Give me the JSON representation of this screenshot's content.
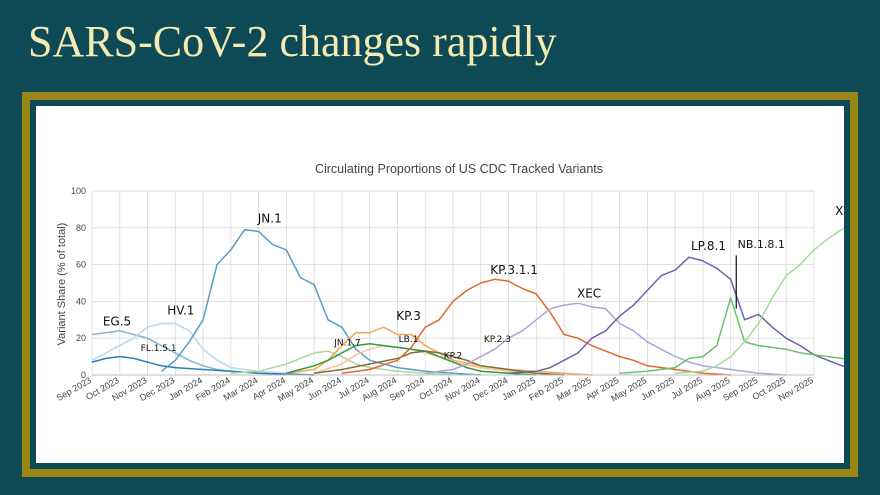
{
  "slide": {
    "title": "SARS-CoV-2 changes rapidly"
  },
  "colors": {
    "background": "#0d4a56",
    "frame": "#9a8614",
    "title": "#f4ebb4"
  },
  "chart_data": {
    "type": "line",
    "title": "Circulating Proportions of US CDC Tracked Variants",
    "ylabel": "Variant Share (% of total)",
    "xlabel": "",
    "ylim": [
      0,
      100
    ],
    "yticks": [
      0,
      20,
      40,
      60,
      80,
      100
    ],
    "xticks": [
      "Sep 2023",
      "Oct 2023",
      "Nov 2023",
      "Dec 2023",
      "Jan 2024",
      "Feb 2024",
      "Mar 2024",
      "Apr 2024",
      "May 2024",
      "Jun 2024",
      "Jul 2024",
      "Aug 2024",
      "Sep 2024",
      "Oct 2024",
      "Nov 2024",
      "Dec 2024",
      "Jan 2025",
      "Feb 2025",
      "Mar 2025",
      "Apr 2025",
      "May 2025",
      "Jun 2025",
      "Jul 2025",
      "Aug 2025",
      "Sep 2025",
      "Oct 2025",
      "Nov 2025"
    ],
    "grid": true,
    "series": [
      {
        "name": "EG.5",
        "color": "#7fb6d6",
        "points": [
          [
            0,
            22
          ],
          [
            0.5,
            23
          ],
          [
            1,
            24
          ],
          [
            1.5,
            22
          ],
          [
            2,
            20
          ],
          [
            2.5,
            16
          ],
          [
            3,
            12
          ],
          [
            3.5,
            8
          ],
          [
            4,
            5
          ],
          [
            4.5,
            3
          ],
          [
            5,
            2
          ],
          [
            6,
            1
          ],
          [
            7,
            0.5
          ],
          [
            8,
            0
          ]
        ]
      },
      {
        "name": "HV.1",
        "color": "#b9d7ea",
        "points": [
          [
            0,
            8
          ],
          [
            0.5,
            12
          ],
          [
            1,
            16
          ],
          [
            1.5,
            20
          ],
          [
            2,
            26
          ],
          [
            2.5,
            28
          ],
          [
            3,
            28
          ],
          [
            3.5,
            24
          ],
          [
            4,
            14
          ],
          [
            4.5,
            8
          ],
          [
            5,
            4
          ],
          [
            6,
            2
          ],
          [
            7,
            1
          ],
          [
            8,
            0
          ]
        ]
      },
      {
        "name": "FL.1.5.1",
        "color": "#2c7fb8",
        "points": [
          [
            0,
            7
          ],
          [
            0.5,
            9
          ],
          [
            1,
            10
          ],
          [
            1.5,
            9
          ],
          [
            2,
            7
          ],
          [
            2.5,
            5
          ],
          [
            3,
            4
          ],
          [
            4,
            3
          ],
          [
            5,
            2
          ],
          [
            6,
            1
          ],
          [
            7,
            0.5
          ],
          [
            8,
            0
          ]
        ]
      },
      {
        "name": "JN.1",
        "color": "#5b9bc8",
        "points": [
          [
            2.5,
            2
          ],
          [
            3,
            8
          ],
          [
            3.5,
            18
          ],
          [
            4,
            30
          ],
          [
            4.5,
            60
          ],
          [
            5,
            68
          ],
          [
            5.5,
            79
          ],
          [
            6,
            78
          ],
          [
            6.5,
            71
          ],
          [
            7,
            68
          ],
          [
            7.5,
            53
          ],
          [
            8,
            49
          ],
          [
            8.5,
            30
          ],
          [
            9,
            26
          ],
          [
            9.5,
            14
          ],
          [
            10,
            8
          ],
          [
            11,
            4
          ],
          [
            12,
            2
          ],
          [
            13,
            1
          ],
          [
            14,
            0
          ]
        ]
      },
      {
        "name": "JN.1.7",
        "color": "#a8d99a",
        "points": [
          [
            5,
            1
          ],
          [
            6,
            2
          ],
          [
            7,
            6
          ],
          [
            7.5,
            9
          ],
          [
            8,
            12
          ],
          [
            8.5,
            13
          ],
          [
            9,
            10
          ],
          [
            9.5,
            6
          ],
          [
            10,
            4
          ],
          [
            11,
            2
          ],
          [
            12,
            1
          ],
          [
            13,
            0
          ]
        ]
      },
      {
        "name": "KP.3",
        "color": "#f4a55a",
        "points": [
          [
            7,
            1
          ],
          [
            8,
            3
          ],
          [
            8.5,
            8
          ],
          [
            9,
            16
          ],
          [
            9.5,
            23
          ],
          [
            10,
            23
          ],
          [
            10.5,
            26
          ],
          [
            11,
            22
          ],
          [
            11.5,
            22
          ],
          [
            12,
            16
          ],
          [
            12.5,
            12
          ],
          [
            13,
            8
          ],
          [
            14,
            5
          ],
          [
            15,
            3
          ],
          [
            16,
            2
          ],
          [
            17,
            1
          ],
          [
            18,
            0
          ]
        ]
      },
      {
        "name": "LB.1",
        "color": "#f7c28f",
        "points": [
          [
            8,
            1
          ],
          [
            9,
            6
          ],
          [
            9.5,
            11
          ],
          [
            10,
            14
          ],
          [
            10.5,
            16
          ],
          [
            11,
            15
          ],
          [
            11.5,
            14
          ],
          [
            12,
            12
          ],
          [
            12.5,
            10
          ],
          [
            13,
            7
          ],
          [
            14,
            4
          ],
          [
            15,
            2
          ],
          [
            16,
            1
          ],
          [
            17,
            0
          ]
        ]
      },
      {
        "name": "KP.2",
        "color": "#2e9a3e",
        "points": [
          [
            7,
            1
          ],
          [
            7.5,
            3
          ],
          [
            8,
            5
          ],
          [
            8.5,
            8
          ],
          [
            9,
            12
          ],
          [
            9.5,
            16
          ],
          [
            10,
            17
          ],
          [
            10.5,
            16
          ],
          [
            11,
            15
          ],
          [
            11.5,
            14
          ],
          [
            12,
            13
          ],
          [
            12.5,
            10
          ],
          [
            13,
            7
          ],
          [
            13.5,
            4
          ],
          [
            14,
            2
          ],
          [
            15,
            1
          ],
          [
            16,
            0
          ]
        ]
      },
      {
        "name": "KP.2.3",
        "color": "#7e6f3a",
        "points": [
          [
            8,
            1
          ],
          [
            9,
            3
          ],
          [
            10,
            6
          ],
          [
            11,
            9
          ],
          [
            11.5,
            12
          ],
          [
            12,
            13
          ],
          [
            12.5,
            12
          ],
          [
            13,
            10
          ],
          [
            13.5,
            8
          ],
          [
            14,
            5
          ],
          [
            15,
            3
          ],
          [
            16,
            1
          ],
          [
            17,
            0
          ]
        ]
      },
      {
        "name": "KP.3.1.1",
        "color": "#e06a2c",
        "points": [
          [
            9,
            1
          ],
          [
            10,
            3
          ],
          [
            11,
            8
          ],
          [
            11.5,
            15
          ],
          [
            12,
            26
          ],
          [
            12.5,
            30
          ],
          [
            13,
            40
          ],
          [
            13.5,
            46
          ],
          [
            14,
            50
          ],
          [
            14.5,
            52
          ],
          [
            15,
            51
          ],
          [
            15.5,
            47
          ],
          [
            16,
            44
          ],
          [
            16.5,
            34
          ],
          [
            17,
            22
          ],
          [
            17.5,
            20
          ],
          [
            18,
            16
          ],
          [
            18.5,
            13
          ],
          [
            19,
            10
          ],
          [
            19.5,
            8
          ],
          [
            20,
            5
          ],
          [
            21,
            3
          ],
          [
            22,
            1
          ],
          [
            23,
            0
          ]
        ]
      },
      {
        "name": "XEC",
        "color": "#aaa6d6",
        "points": [
          [
            12,
            1
          ],
          [
            13,
            3
          ],
          [
            13.5,
            6
          ],
          [
            14,
            10
          ],
          [
            14.5,
            14
          ],
          [
            15,
            20
          ],
          [
            15.5,
            24
          ],
          [
            16,
            30
          ],
          [
            16.5,
            36
          ],
          [
            17,
            38
          ],
          [
            17.5,
            39
          ],
          [
            18,
            37
          ],
          [
            18.5,
            36
          ],
          [
            19,
            28
          ],
          [
            19.5,
            24
          ],
          [
            20,
            18
          ],
          [
            20.5,
            14
          ],
          [
            21,
            10
          ],
          [
            21.5,
            7
          ],
          [
            22,
            5
          ],
          [
            23,
            3
          ],
          [
            24,
            1
          ],
          [
            25,
            0
          ]
        ]
      },
      {
        "name": "LP.8.1",
        "color": "#6b64aa",
        "points": [
          [
            15,
            1
          ],
          [
            16,
            2
          ],
          [
            16.5,
            4
          ],
          [
            17,
            8
          ],
          [
            17.5,
            12
          ],
          [
            18,
            20
          ],
          [
            18.5,
            24
          ],
          [
            19,
            32
          ],
          [
            19.5,
            38
          ],
          [
            20,
            46
          ],
          [
            20.5,
            54
          ],
          [
            21,
            57
          ],
          [
            21.5,
            64
          ],
          [
            22,
            62
          ],
          [
            22.5,
            58
          ],
          [
            23,
            52
          ],
          [
            23.5,
            30
          ],
          [
            24,
            33
          ],
          [
            24.5,
            26
          ],
          [
            25,
            20
          ],
          [
            25.5,
            16
          ],
          [
            26,
            11
          ],
          [
            26.5,
            8
          ],
          [
            27,
            5
          ],
          [
            28,
            3
          ],
          [
            28.5,
            2
          ]
        ]
      },
      {
        "name": "NB.1.8.1",
        "color": "#6cc26c",
        "points": [
          [
            19,
            1
          ],
          [
            20,
            2
          ],
          [
            21,
            4
          ],
          [
            21.5,
            9
          ],
          [
            22,
            10
          ],
          [
            22.5,
            16
          ],
          [
            23,
            42
          ],
          [
            23.5,
            18
          ],
          [
            24,
            16
          ],
          [
            24.5,
            15
          ],
          [
            25,
            14
          ],
          [
            25.5,
            12
          ],
          [
            26,
            11
          ],
          [
            26.5,
            10
          ],
          [
            27,
            9
          ],
          [
            28,
            7
          ]
        ]
      },
      {
        "name": "XFG",
        "color": "#a2dc9a",
        "points": [
          [
            21,
            1
          ],
          [
            22,
            2
          ],
          [
            22.5,
            5
          ],
          [
            23,
            10
          ],
          [
            23.5,
            18
          ],
          [
            24,
            28
          ],
          [
            24.5,
            42
          ],
          [
            25,
            54
          ],
          [
            25.5,
            60
          ],
          [
            26,
            68
          ],
          [
            26.5,
            74
          ],
          [
            27,
            79
          ],
          [
            27.5,
            84
          ]
        ]
      }
    ],
    "labels": [
      {
        "text": "EG.5",
        "x": 0.9,
        "y": 27,
        "size": 12
      },
      {
        "text": "HV.1",
        "x": 3.2,
        "y": 33,
        "size": 12
      },
      {
        "text": "FL.1.5.1",
        "x": 2.4,
        "y": 13,
        "size": 9
      },
      {
        "text": "JN.1",
        "x": 6.4,
        "y": 83,
        "size": 12
      },
      {
        "text": "JN.1.7",
        "x": 9.2,
        "y": 16,
        "size": 9
      },
      {
        "text": "KP.3",
        "x": 11.4,
        "y": 30,
        "size": 12
      },
      {
        "text": "LB.1",
        "x": 11.4,
        "y": 18,
        "size": 9
      },
      {
        "text": "KP.2",
        "x": 13.0,
        "y": 9,
        "size": 9
      },
      {
        "text": "KP.2.3",
        "x": 14.6,
        "y": 18,
        "size": 9
      },
      {
        "text": "KP.3.1.1",
        "x": 15.2,
        "y": 55,
        "size": 12
      },
      {
        "text": "XEC",
        "x": 17.9,
        "y": 42,
        "size": 12
      },
      {
        "text": "LP.8.1",
        "x": 22.2,
        "y": 68,
        "size": 12
      },
      {
        "text": "NB.1.8.1",
        "x": 24.1,
        "y": 69,
        "size": 11
      },
      {
        "text": "XFG",
        "x": 27.2,
        "y": 87,
        "size": 12
      }
    ],
    "annotation_pointer": {
      "from": [
        23.2,
        65
      ],
      "to": [
        23.2,
        36
      ]
    }
  }
}
